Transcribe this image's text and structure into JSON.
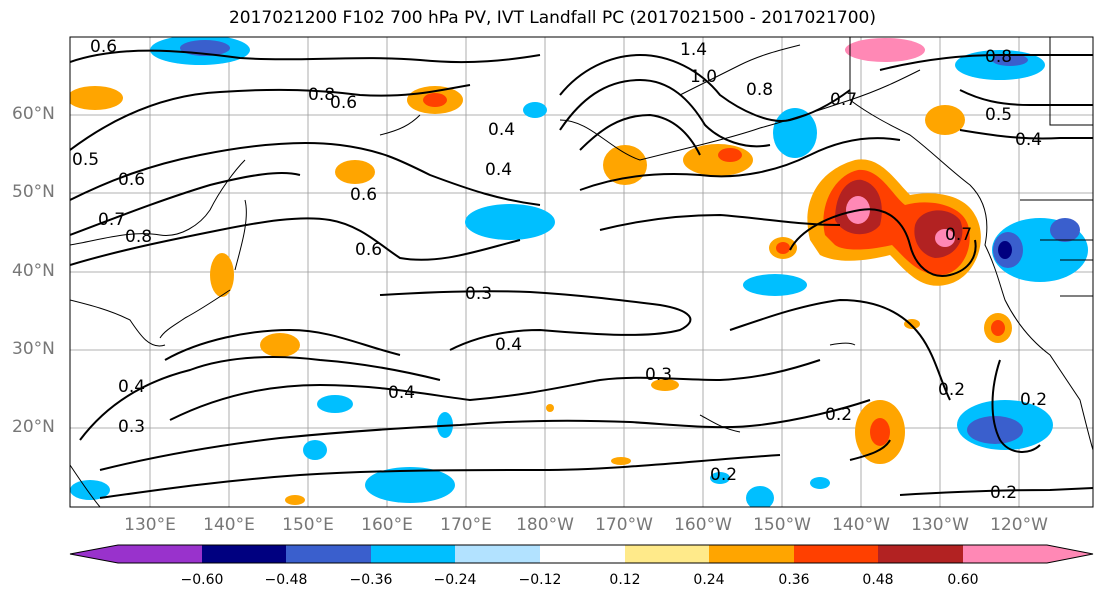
{
  "title": "2017021200 F102 700 hPa PV, IVT Landfall PC (2017021500 - 2017021700)",
  "lat_labels": [
    "60°N",
    "50°N",
    "40°N",
    "30°N",
    "20°N"
  ],
  "lon_labels": [
    "130°E",
    "140°E",
    "150°E",
    "160°E",
    "170°E",
    "180°W",
    "170°W",
    "160°W",
    "150°W",
    "140°W",
    "130°W",
    "120°W"
  ],
  "contour_labels": [
    "0.6",
    "0.8",
    "0.6",
    "0.5",
    "0.6",
    "0.7",
    "0.8",
    "1.4",
    "1.0",
    "0.8",
    "0.7",
    "0.8",
    "0.5",
    "0.4",
    "0.4",
    "0.4",
    "0.6",
    "0.6",
    "0.3",
    "0.4",
    "0.4",
    "0.3",
    "0.4",
    "0.3",
    "0.2",
    "0.2",
    "0.2",
    "0.2",
    "0.2",
    "0.7"
  ],
  "colorbar": {
    "ticks": [
      "−0.60",
      "−0.48",
      "−0.36",
      "−0.24",
      "−0.12",
      "0.12",
      "0.24",
      "0.36",
      "0.48",
      "0.60"
    ],
    "colors": [
      "#9932cc",
      "#000080",
      "#3a5fcd",
      "#00bfff",
      "#b2e2ff",
      "#ffffff",
      "#ffea8a",
      "#ffa500",
      "#ff4000",
      "#b22222",
      "#ff88b5"
    ]
  }
}
